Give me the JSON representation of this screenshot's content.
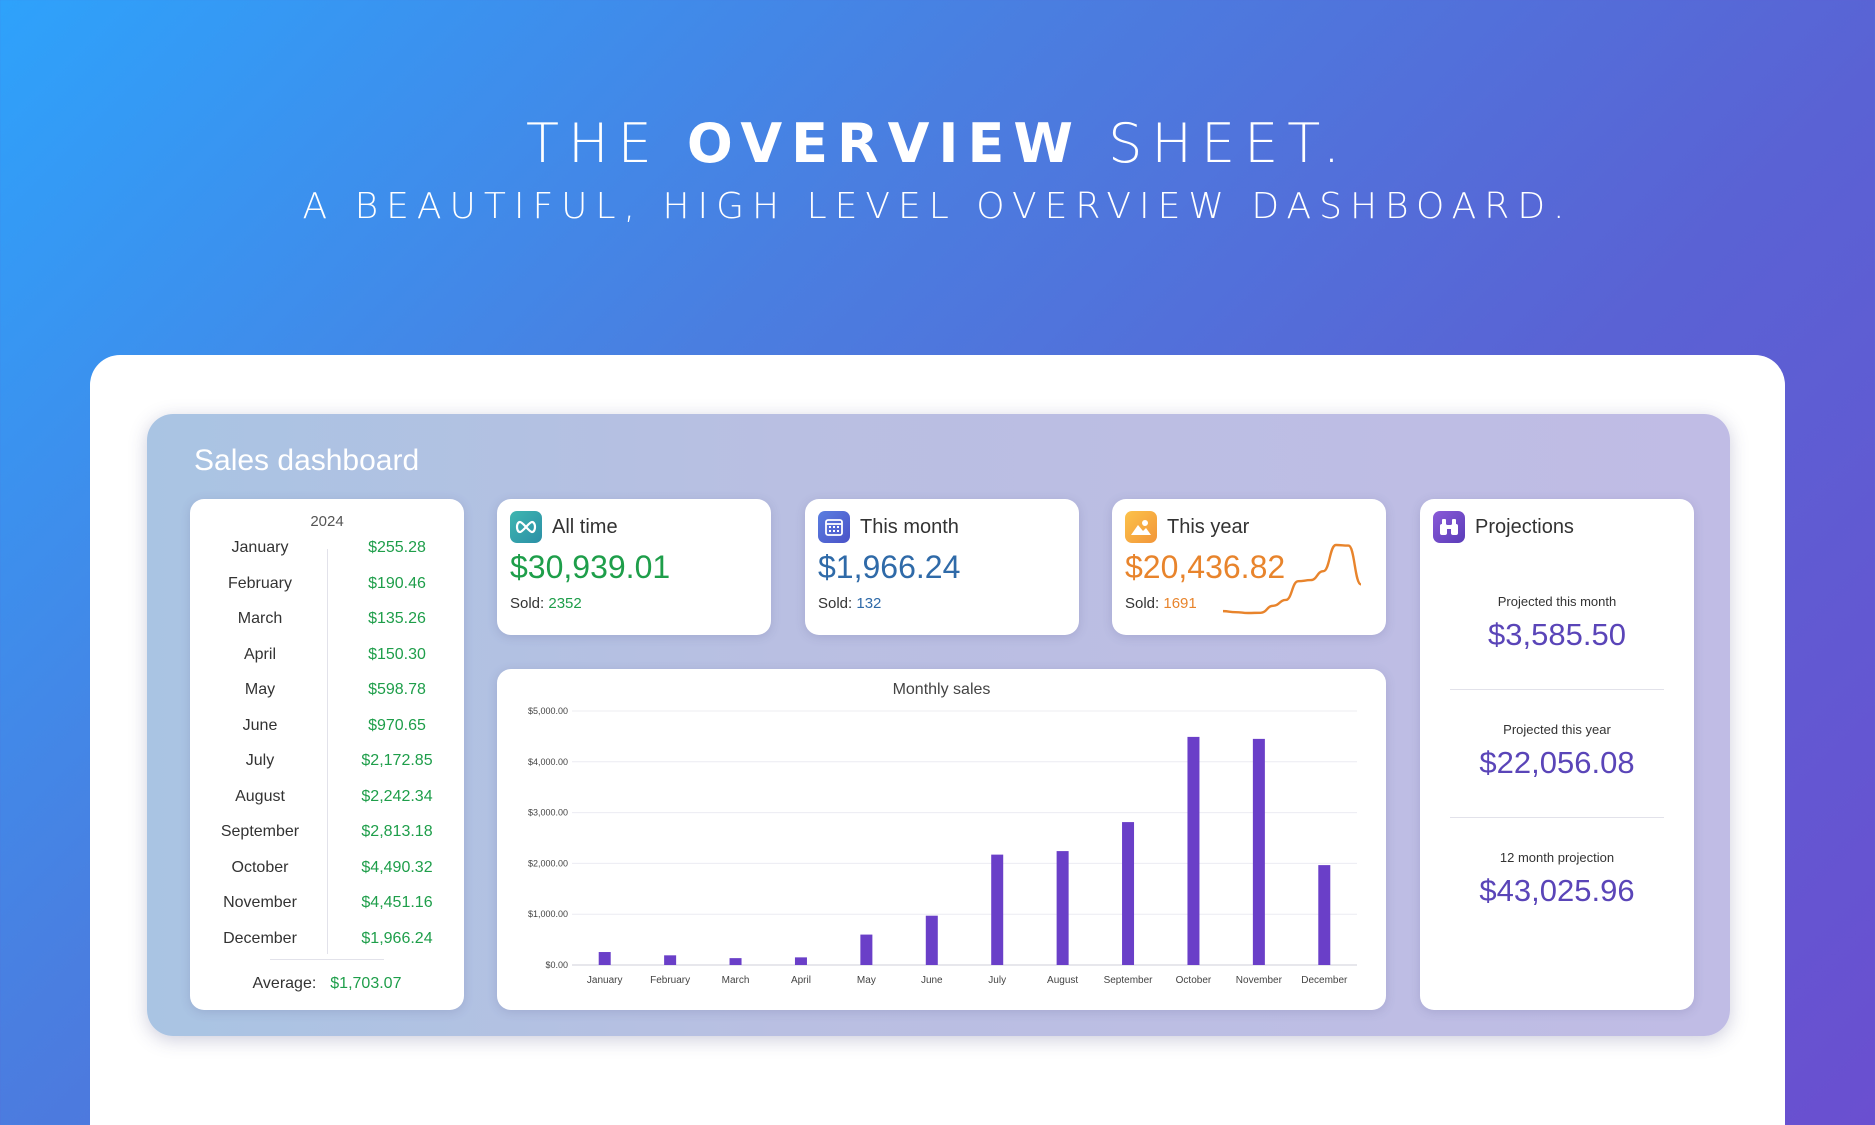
{
  "hero": {
    "title_pre": "THE ",
    "title_bold": "OVERVIEW",
    "title_post": " SHEET.",
    "subtitle": "A BEAUTIFUL, HIGH LEVEL OVERVIEW DASHBOARD."
  },
  "dashboard": {
    "title": "Sales dashboard",
    "year": "2024",
    "months": [
      {
        "month": "January",
        "value": "$255.28"
      },
      {
        "month": "February",
        "value": "$190.46"
      },
      {
        "month": "March",
        "value": "$135.26"
      },
      {
        "month": "April",
        "value": "$150.30"
      },
      {
        "month": "May",
        "value": "$598.78"
      },
      {
        "month": "June",
        "value": "$970.65"
      },
      {
        "month": "July",
        "value": "$2,172.85"
      },
      {
        "month": "August",
        "value": "$2,242.34"
      },
      {
        "month": "September",
        "value": "$2,813.18"
      },
      {
        "month": "October",
        "value": "$4,490.32"
      },
      {
        "month": "November",
        "value": "$4,451.16"
      },
      {
        "month": "December",
        "value": "$1,966.24"
      }
    ],
    "average_label": "Average:",
    "average_value": "$1,703.07",
    "all_time": {
      "label": "All time",
      "amount": "$30,939.01",
      "sold_label": "Sold:",
      "sold": "2352",
      "icon": "infinity-icon",
      "color": "#1e9e4a"
    },
    "this_month": {
      "label": "This month",
      "amount": "$1,966.24",
      "sold_label": "Sold:",
      "sold": "132",
      "icon": "calendar-icon",
      "color": "#2f6aa8"
    },
    "this_year": {
      "label": "This year",
      "amount": "$20,436.82",
      "sold_label": "Sold:",
      "sold": "1691",
      "icon": "mountain-sun-icon",
      "color": "#e8842c"
    },
    "projections": {
      "label": "Projections",
      "icon": "binoculars-icon",
      "items": [
        {
          "label": "Projected this month",
          "value": "$3,585.50"
        },
        {
          "label": "Projected this year",
          "value": "$22,056.08"
        },
        {
          "label": "12 month projection",
          "value": "$43,025.96"
        }
      ]
    }
  },
  "chart_data": [
    {
      "type": "bar",
      "title": "Monthly sales",
      "categories": [
        "January",
        "February",
        "March",
        "April",
        "May",
        "June",
        "July",
        "August",
        "September",
        "October",
        "November",
        "December"
      ],
      "values": [
        255.28,
        190.46,
        135.26,
        150.3,
        598.78,
        970.65,
        2172.85,
        2242.34,
        2813.18,
        4490.32,
        4451.16,
        1966.24
      ],
      "ylim": [
        0,
        5000
      ],
      "yticks": [
        "$0.00",
        "$1,000.00",
        "$2,000.00",
        "$3,000.00",
        "$4,000.00",
        "$5,000.00"
      ],
      "grid": true,
      "color": "#6a3fc8"
    },
    {
      "type": "line",
      "values": [
        255.28,
        190.46,
        135.26,
        150.3,
        598.78,
        970.65,
        2172.85,
        2242.34,
        2813.18,
        4490.32,
        4451.16,
        1966.24
      ],
      "color": "#e8842c"
    }
  ]
}
